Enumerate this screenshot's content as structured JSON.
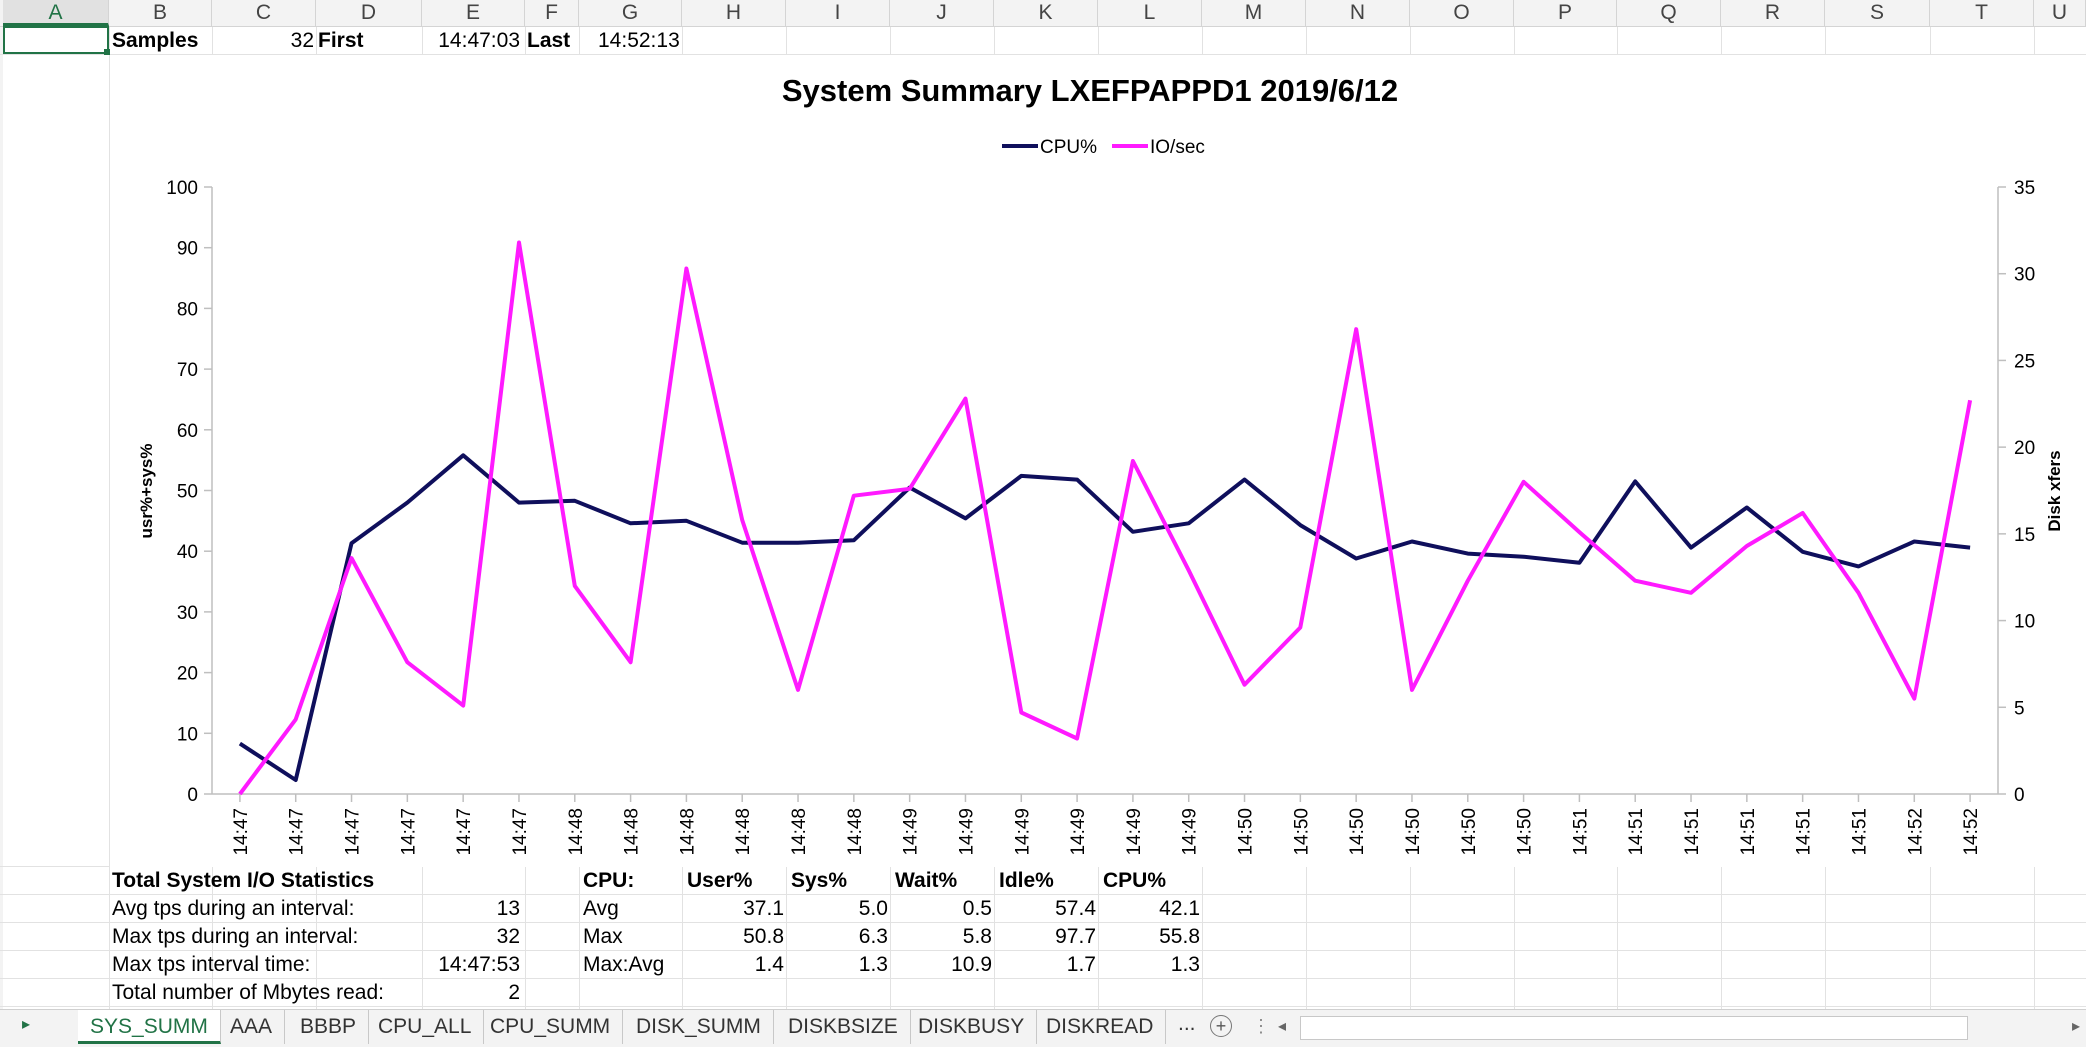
{
  "columns": [
    "A",
    "B",
    "C",
    "D",
    "E",
    "F",
    "G",
    "H",
    "I",
    "J",
    "K",
    "L",
    "M",
    "N",
    "O",
    "P",
    "Q",
    "R",
    "S",
    "T",
    "U"
  ],
  "top_row": {
    "samples_label": "Samples",
    "samples_value": "32",
    "first_label": "First",
    "first_value": "14:47:03",
    "last_label": "Last",
    "last_value": "14:52:13"
  },
  "io_stats": {
    "header": "Total System I/O Statistics",
    "rows": [
      {
        "label": "Avg tps during an interval:",
        "value": "13"
      },
      {
        "label": "Max tps during an interval:",
        "value": "32"
      },
      {
        "label": "Max tps interval time:",
        "value": "14:47:53"
      },
      {
        "label": "Total number of Mbytes read:",
        "value": "2"
      }
    ]
  },
  "cpu_table": {
    "headers": [
      "CPU:",
      "User%",
      "Sys%",
      "Wait%",
      "Idle%",
      "CPU%"
    ],
    "rows": [
      [
        "Avg",
        "37.1",
        "5.0",
        "0.5",
        "57.4",
        "42.1"
      ],
      [
        "Max",
        "50.8",
        "6.3",
        "5.8",
        "97.7",
        "55.8"
      ],
      [
        "Max:Avg",
        "1.4",
        "1.3",
        "10.9",
        "1.7",
        "1.3"
      ]
    ]
  },
  "sheet_tabs": [
    "SYS_SUMM",
    "AAA",
    "BBBP",
    "CPU_ALL",
    "CPU_SUMM",
    "DISK_SUMM",
    "DISKBSIZE",
    "DISKBUSY",
    "DISKREAD"
  ],
  "active_tab": "SYS_SUMM",
  "tab_more": "...",
  "chart_data": {
    "type": "line",
    "title": "System Summary LXEFPAPPD1  2019/6/12",
    "ylabel": "usr%+sys%",
    "y2label": "Disk xfers",
    "ylim": [
      0,
      100
    ],
    "y2lim": [
      0,
      35
    ],
    "yticks": [
      0,
      10,
      20,
      30,
      40,
      50,
      60,
      70,
      80,
      90,
      100
    ],
    "y2ticks": [
      0,
      5,
      10,
      15,
      20,
      25,
      30,
      35
    ],
    "legend_position": "top",
    "grid": false,
    "categories": [
      "14:47",
      "14:47",
      "14:47",
      "14:47",
      "14:47",
      "14:47",
      "14:48",
      "14:48",
      "14:48",
      "14:48",
      "14:48",
      "14:48",
      "14:49",
      "14:49",
      "14:49",
      "14:49",
      "14:49",
      "14:49",
      "14:50",
      "14:50",
      "14:50",
      "14:50",
      "14:50",
      "14:50",
      "14:51",
      "14:51",
      "14:51",
      "14:51",
      "14:51",
      "14:51",
      "14:52",
      "14:52"
    ],
    "series": [
      {
        "name": "CPU%",
        "axis": "left",
        "color": "#0f0f5c",
        "values": [
          8.3,
          2.3,
          41.3,
          48.0,
          55.8,
          48.0,
          48.3,
          44.6,
          45.0,
          41.4,
          41.4,
          41.8,
          50.5,
          45.4,
          52.4,
          51.8,
          43.2,
          44.6,
          51.8,
          44.3,
          38.8,
          41.6,
          39.6,
          39.1,
          38.1,
          51.5,
          40.6,
          47.2,
          39.9,
          37.5,
          41.6,
          40.6
        ]
      },
      {
        "name": "IO/sec",
        "axis": "right",
        "color": "#ff1aff",
        "values": [
          0,
          4.3,
          13.6,
          7.6,
          5.1,
          31.8,
          12.0,
          7.6,
          30.3,
          15.8,
          6.0,
          17.2,
          17.6,
          22.8,
          4.7,
          3.2,
          19.2,
          12.9,
          6.3,
          9.6,
          26.8,
          6.0,
          12.3,
          18.0,
          15.1,
          12.3,
          11.6,
          14.3,
          16.2,
          11.6,
          5.5,
          22.7
        ]
      }
    ]
  }
}
